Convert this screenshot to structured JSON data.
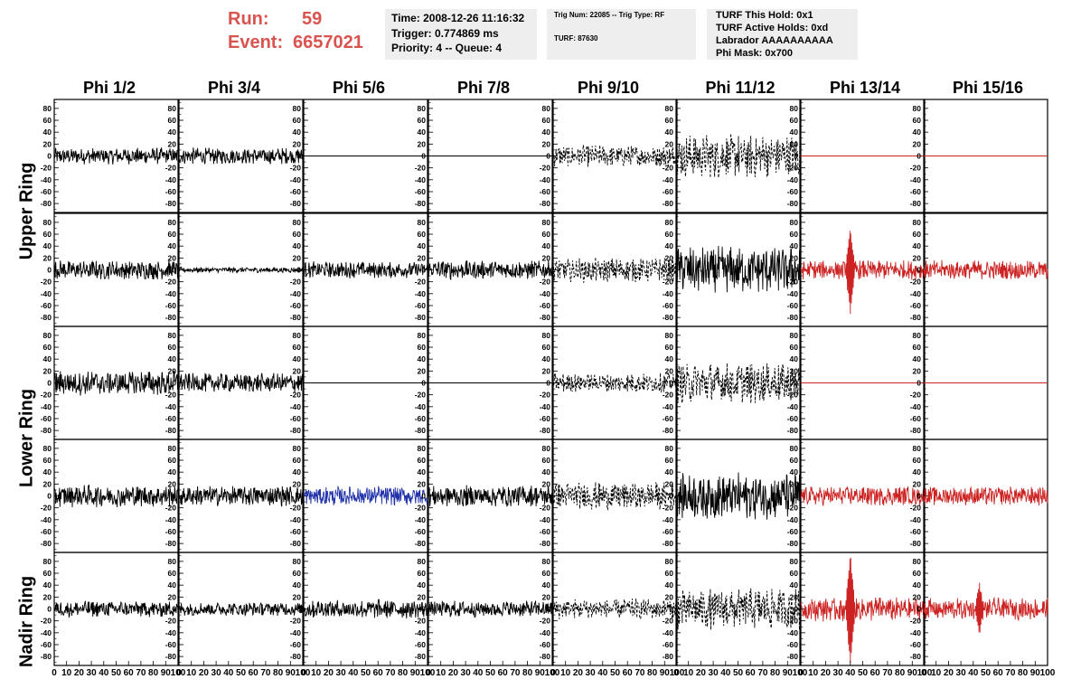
{
  "header": {
    "run_label": "Run:",
    "run_value": "59",
    "event_label": "Event:",
    "event_value": "6657021",
    "accent_color": "#d9534f"
  },
  "info": {
    "time": "Time: 2008-12-26 11:16:32",
    "trigger": "Trigger: 0.774869 ms",
    "priority": "Priority: 4 -- Queue: 4",
    "trig_line": "Trig Num: 22085 -- Trig Type: RF",
    "turf_line": "TURF: 87630",
    "turf_hold": "TURF This Hold: 0x1",
    "turf_active": "TURF Active Holds: 0xd",
    "labrador": "Labrador AAAAAAAAAA",
    "phi_mask": "Phi Mask: 0x700"
  },
  "ring_labels": {
    "upper": "Upper Ring",
    "lower": "Lower Ring",
    "nadir": "Nadir Ring"
  },
  "chart_data": {
    "type": "line",
    "columns": [
      "Phi 1/2",
      "Phi 3/4",
      "Phi 5/6",
      "Phi 7/8",
      "Phi 9/10",
      "Phi 11/12",
      "Phi 13/14",
      "Phi 15/16"
    ],
    "y_ticks": [
      "80",
      "60",
      "40",
      "20",
      "0",
      "-20",
      "-40",
      "-60",
      "-80"
    ],
    "x_tick_labels": [
      "0",
      "10",
      "20",
      "30",
      "40",
      "50",
      "60",
      "70",
      "80",
      "90",
      "100"
    ],
    "xlim": [
      0,
      100
    ],
    "ylim": [
      -95,
      95
    ],
    "style_colors": {
      "black": "#000000",
      "red": "#cc2222",
      "blue": "#2233aa"
    },
    "panels": [
      [
        {
          "style": "black",
          "amp": 12
        },
        {
          "style": "black",
          "amp": 12
        },
        {
          "style": "flat"
        },
        {
          "style": "flat"
        },
        {
          "style": "dashed",
          "amp": 16
        },
        {
          "style": "dashed",
          "amp": 32
        },
        {
          "style": "flatred"
        },
        {
          "style": "flatred"
        }
      ],
      [
        {
          "style": "black",
          "amp": 14
        },
        {
          "style": "black",
          "amp": 4
        },
        {
          "style": "black",
          "amp": 12
        },
        {
          "style": "black",
          "amp": 14
        },
        {
          "style": "dashed",
          "amp": 18
        },
        {
          "style": "black",
          "amp": 34
        },
        {
          "style": "red",
          "amp": 14,
          "spike": [
            40,
            70
          ]
        },
        {
          "style": "red",
          "amp": 14
        }
      ],
      [
        {
          "style": "black",
          "amp": 18
        },
        {
          "style": "black",
          "amp": 14
        },
        {
          "style": "flat"
        },
        {
          "style": "flat"
        },
        {
          "style": "dashed",
          "amp": 14
        },
        {
          "style": "dashed",
          "amp": 30
        },
        {
          "style": "flatred"
        },
        {
          "style": "flatred"
        }
      ],
      [
        {
          "style": "black",
          "amp": 16
        },
        {
          "style": "black",
          "amp": 15
        },
        {
          "style": "blue",
          "amp": 14
        },
        {
          "style": "black",
          "amp": 16
        },
        {
          "style": "dashed",
          "amp": 20
        },
        {
          "style": "black",
          "amp": 34
        },
        {
          "style": "red",
          "amp": 14
        },
        {
          "style": "red",
          "amp": 14
        }
      ],
      [
        {
          "style": "black",
          "amp": 12
        },
        {
          "style": "black",
          "amp": 10
        },
        {
          "style": "black",
          "amp": 14
        },
        {
          "style": "black",
          "amp": 12
        },
        {
          "style": "dashed",
          "amp": 15
        },
        {
          "style": "dashed",
          "amp": 30
        },
        {
          "style": "red",
          "amp": 18,
          "spike": [
            40,
            90
          ]
        },
        {
          "style": "red",
          "amp": 16,
          "spike": [
            45,
            40
          ]
        }
      ]
    ]
  }
}
